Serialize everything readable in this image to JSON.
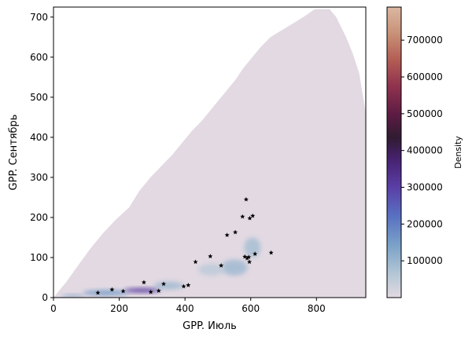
{
  "chart_data": {
    "type": "heatmap",
    "xlabel": "GPP. Июль",
    "ylabel": "GPP. Сентябрь",
    "xlim": [
      0,
      950
    ],
    "ylim": [
      0,
      725
    ],
    "x_ticks": [
      0,
      200,
      400,
      600,
      800
    ],
    "y_ticks": [
      0,
      100,
      200,
      300,
      400,
      500,
      600,
      700
    ],
    "x_tick_labels": [
      "0",
      "200",
      "400",
      "600",
      "800"
    ],
    "y_tick_labels": [
      "0",
      "100",
      "200",
      "300",
      "400",
      "500",
      "600",
      "700"
    ],
    "density_polygon": [
      [
        0,
        0
      ],
      [
        950,
        0
      ],
      [
        950,
        460
      ],
      [
        930,
        560
      ],
      [
        910,
        610
      ],
      [
        890,
        650
      ],
      [
        860,
        700
      ],
      [
        840,
        720
      ],
      [
        795,
        720
      ],
      [
        760,
        700
      ],
      [
        720,
        680
      ],
      [
        690,
        665
      ],
      [
        660,
        650
      ],
      [
        630,
        625
      ],
      [
        600,
        595
      ],
      [
        575,
        570
      ],
      [
        555,
        545
      ],
      [
        530,
        520
      ],
      [
        505,
        495
      ],
      [
        480,
        470
      ],
      [
        450,
        440
      ],
      [
        420,
        415
      ],
      [
        390,
        385
      ],
      [
        360,
        355
      ],
      [
        330,
        330
      ],
      [
        295,
        300
      ],
      [
        260,
        265
      ],
      [
        230,
        225
      ],
      [
        190,
        195
      ],
      [
        150,
        160
      ],
      [
        110,
        120
      ],
      [
        70,
        75
      ],
      [
        40,
        40
      ],
      [
        15,
        15
      ]
    ],
    "density_hotspots": [
      {
        "x": 270,
        "y": 18,
        "sx": 55,
        "sy": 6,
        "density": 310000
      },
      {
        "x": 160,
        "y": 12,
        "sx": 70,
        "sy": 7,
        "density": 150000
      },
      {
        "x": 60,
        "y": 4,
        "sx": 35,
        "sy": 4,
        "density": 120000
      },
      {
        "x": 350,
        "y": 30,
        "sx": 45,
        "sy": 10,
        "density": 90000
      },
      {
        "x": 550,
        "y": 75,
        "sx": 40,
        "sy": 20,
        "density": 90000
      },
      {
        "x": 605,
        "y": 125,
        "sx": 25,
        "sy": 25,
        "density": 80000
      },
      {
        "x": 480,
        "y": 70,
        "sx": 40,
        "sy": 15,
        "density": 50000
      }
    ],
    "points": [
      {
        "x": 135,
        "y": 12
      },
      {
        "x": 178,
        "y": 20
      },
      {
        "x": 212,
        "y": 16
      },
      {
        "x": 275,
        "y": 38
      },
      {
        "x": 296,
        "y": 14
      },
      {
        "x": 320,
        "y": 17
      },
      {
        "x": 335,
        "y": 34
      },
      {
        "x": 396,
        "y": 28
      },
      {
        "x": 410,
        "y": 31
      },
      {
        "x": 432,
        "y": 89
      },
      {
        "x": 477,
        "y": 103
      },
      {
        "x": 510,
        "y": 80
      },
      {
        "x": 528,
        "y": 156
      },
      {
        "x": 553,
        "y": 163
      },
      {
        "x": 575,
        "y": 202
      },
      {
        "x": 582,
        "y": 102
      },
      {
        "x": 586,
        "y": 245
      },
      {
        "x": 589,
        "y": 98
      },
      {
        "x": 594,
        "y": 101
      },
      {
        "x": 596,
        "y": 89
      },
      {
        "x": 597,
        "y": 198
      },
      {
        "x": 606,
        "y": 204
      },
      {
        "x": 613,
        "y": 109
      },
      {
        "x": 662,
        "y": 112
      }
    ],
    "colorbar": {
      "label": "Density",
      "ticks": [
        100000,
        200000,
        300000,
        400000,
        500000,
        600000,
        700000
      ],
      "tick_labels": [
        "100000",
        "200000",
        "300000",
        "400000",
        "500000",
        "600000",
        "700000"
      ],
      "min": 0,
      "max": 790000,
      "colormap": "twilight",
      "stops": [
        {
          "v": 0.0,
          "color": "#e2d9e2"
        },
        {
          "v": 0.08,
          "color": "#b5c7d6"
        },
        {
          "v": 0.18,
          "color": "#7aa2c8"
        },
        {
          "v": 0.28,
          "color": "#5971c2"
        },
        {
          "v": 0.38,
          "color": "#5a3ea6"
        },
        {
          "v": 0.48,
          "color": "#46216d"
        },
        {
          "v": 0.55,
          "color": "#301b32"
        },
        {
          "v": 0.63,
          "color": "#5d1b43"
        },
        {
          "v": 0.73,
          "color": "#90334f"
        },
        {
          "v": 0.82,
          "color": "#b45e54"
        },
        {
          "v": 0.91,
          "color": "#c89278"
        },
        {
          "v": 1.0,
          "color": "#dbb7a1"
        }
      ]
    }
  }
}
